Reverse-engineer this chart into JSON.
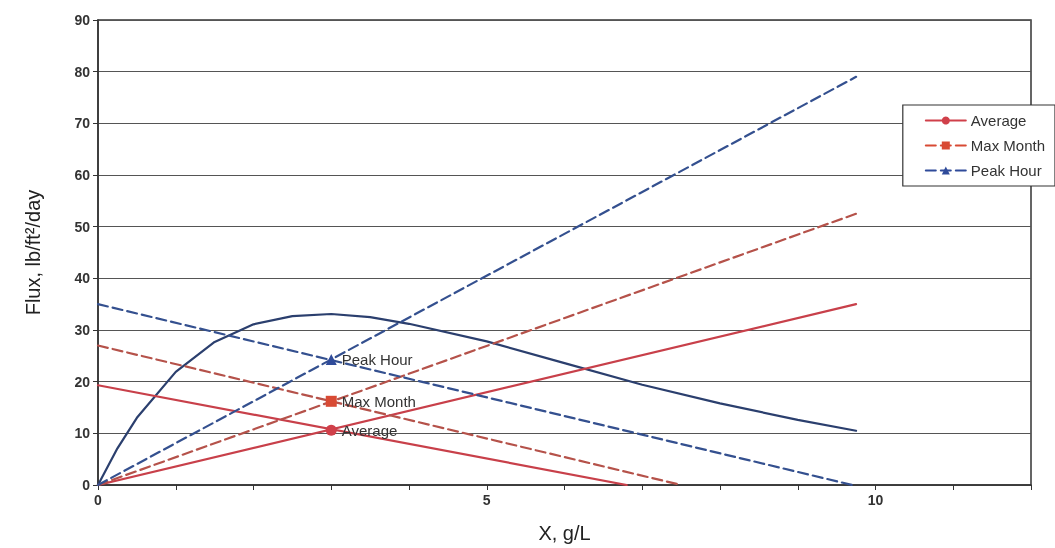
{
  "chart_data": {
    "type": "line",
    "xlabel": "X, g/L",
    "ylabel": "Flux, lb/ft²/day",
    "xlim": [
      0,
      12
    ],
    "xticks": [
      0,
      {
        "value": 1,
        "label": null
      },
      {
        "value": 2,
        "label": null
      },
      {
        "value": 3,
        "label": null
      },
      {
        "value": 4,
        "label": null
      },
      5,
      {
        "value": 6,
        "label": null
      },
      {
        "value": 7,
        "label": null
      },
      {
        "value": 8,
        "label": null
      },
      {
        "value": 9,
        "label": null
      },
      10,
      {
        "value": 11,
        "label": null
      },
      {
        "value": 12,
        "label": null
      }
    ],
    "ylim": [
      0,
      90
    ],
    "yticks": [
      0,
      10,
      20,
      30,
      40,
      50,
      60,
      70,
      80,
      90
    ],
    "grid": "y",
    "legend": "top right",
    "series": [
      {
        "color": "#2b3f6e",
        "line_style": "solid",
        "marker": "none",
        "x": [
          0,
          0.25,
          0.5,
          1,
          1.5,
          2,
          2.5,
          3,
          3.5,
          4,
          5,
          6,
          7,
          8,
          9,
          9.75
        ],
        "values": [
          0,
          7.1,
          13.0,
          21.9,
          27.7,
          31.1,
          32.7,
          33.1,
          32.5,
          31.2,
          27.8,
          23.6,
          19.4,
          15.8,
          12.6,
          10.5
        ]
      },
      {
        "color": "#c8404a",
        "line_style": "solid",
        "marker": "none",
        "x": [
          0,
          6.8
        ],
        "values": [
          19.3,
          0
        ]
      },
      {
        "color": "#c8404a",
        "line_style": "solid",
        "marker": "none",
        "x": [
          0,
          9.75
        ],
        "values": [
          0,
          35
        ]
      },
      {
        "color": "#b5524a",
        "line_style": "dashed",
        "marker": "none",
        "x": [
          0,
          7.5
        ],
        "values": [
          27,
          0
        ]
      },
      {
        "color": "#b5524a",
        "line_style": "dashed",
        "marker": "none",
        "x": [
          0,
          9.75
        ],
        "values": [
          0,
          52.5
        ]
      },
      {
        "color": "#34508f",
        "line_style": "dashed",
        "marker": "none",
        "x": [
          0,
          9.7
        ],
        "values": [
          35,
          0
        ]
      },
      {
        "color": "#34508f",
        "line_style": "dashed",
        "marker": "none",
        "x": [
          0,
          9.75
        ],
        "values": [
          0,
          79
        ]
      },
      {
        "name": "Average",
        "color": "#d0404a",
        "line_style": "solid",
        "marker": "circle",
        "x": [
          3
        ],
        "values": [
          10.6
        ]
      },
      {
        "name": "Max Month",
        "color": "#d84a34",
        "line_style": "dashed",
        "marker": "square",
        "x": [
          3
        ],
        "values": [
          16.2
        ]
      },
      {
        "name": "Peak Hour",
        "color": "#2f4b9a",
        "line_style": "dashed",
        "marker": "triangle",
        "x": [
          3
        ],
        "values": [
          24.3
        ]
      }
    ]
  }
}
